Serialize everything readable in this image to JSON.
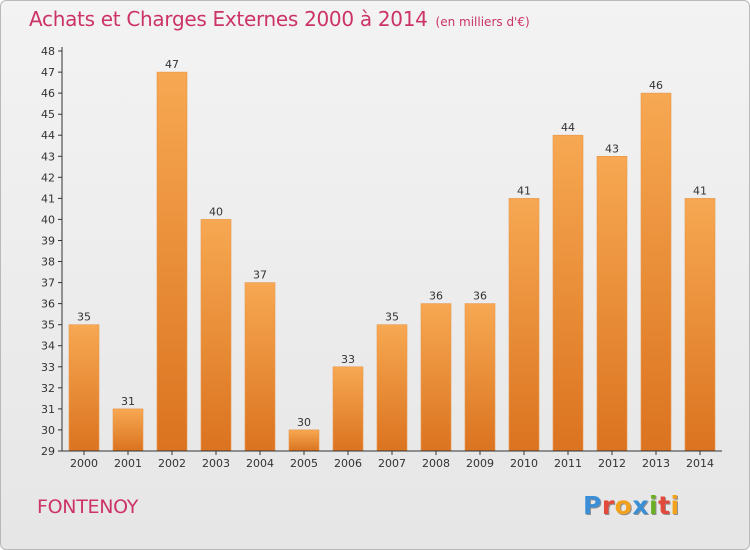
{
  "header": {
    "title": "Achats et Charges Externes 2000 à 2014",
    "subtitle": "(en milliers d'€)"
  },
  "footer": {
    "commune": "FONTENOY",
    "logo_text": "Proxiti"
  },
  "colors": {
    "title": "#cc3366",
    "bar_top": "#f7a852",
    "bar_bottom": "#db7320",
    "axis": "#333333"
  },
  "chart_data": {
    "type": "bar",
    "title": "Achats et Charges Externes 2000 à 2014",
    "subtitle": "(en milliers d'€)",
    "xlabel": "",
    "ylabel": "",
    "categories": [
      "2000",
      "2001",
      "2002",
      "2003",
      "2004",
      "2005",
      "2006",
      "2007",
      "2008",
      "2009",
      "2010",
      "2011",
      "2012",
      "2013",
      "2014"
    ],
    "values": [
      35,
      31,
      47,
      40,
      37,
      30,
      33,
      35,
      36,
      36,
      41,
      44,
      43,
      46,
      41
    ],
    "ylim": [
      29,
      48
    ],
    "yticks": [
      29,
      30,
      31,
      32,
      33,
      34,
      35,
      36,
      37,
      38,
      39,
      40,
      41,
      42,
      43,
      44,
      45,
      46,
      47,
      48
    ],
    "grid": false,
    "legend": "none",
    "data_labels": true
  }
}
